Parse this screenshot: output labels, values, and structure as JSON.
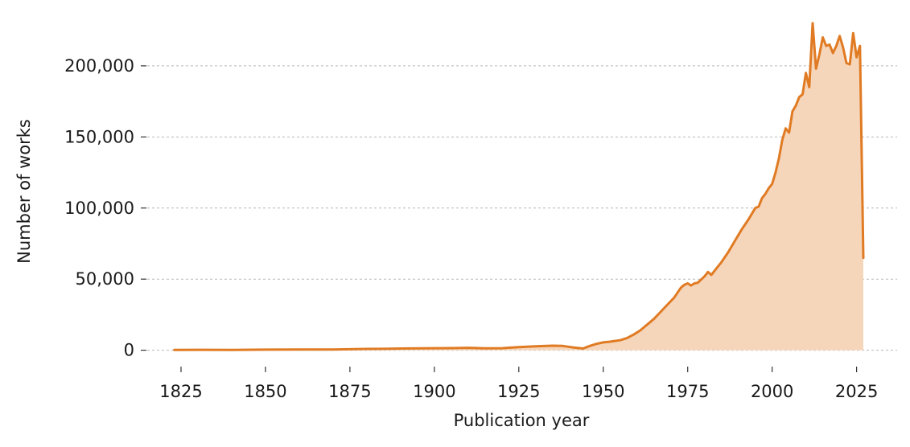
{
  "chart_data": {
    "type": "area",
    "title": "",
    "xlabel": "Publication year",
    "ylabel": "Number of works",
    "xlim": [
      1815,
      2037
    ],
    "ylim": [
      -7000,
      235000
    ],
    "x_ticks": [
      1825,
      1850,
      1875,
      1900,
      1925,
      1950,
      1975,
      2000,
      2025
    ],
    "y_ticks": [
      0,
      50000,
      100000,
      150000,
      200000
    ],
    "y_tick_labels": [
      "0",
      "50,000",
      "100,000",
      "150,000",
      "200,000"
    ],
    "grid": "y-dashed",
    "series": [
      {
        "line_color": "#e07b24",
        "fill_color": "#f6d6bb",
        "points": [
          [
            1823,
            200
          ],
          [
            1830,
            300
          ],
          [
            1840,
            250
          ],
          [
            1850,
            400
          ],
          [
            1860,
            450
          ],
          [
            1870,
            500
          ],
          [
            1875,
            700
          ],
          [
            1880,
            900
          ],
          [
            1885,
            1000
          ],
          [
            1890,
            1200
          ],
          [
            1900,
            1400
          ],
          [
            1905,
            1500
          ],
          [
            1910,
            1700
          ],
          [
            1915,
            1300
          ],
          [
            1920,
            1400
          ],
          [
            1925,
            2200
          ],
          [
            1930,
            2800
          ],
          [
            1935,
            3200
          ],
          [
            1938,
            3000
          ],
          [
            1941,
            2000
          ],
          [
            1944,
            1200
          ],
          [
            1946,
            3000
          ],
          [
            1948,
            4500
          ],
          [
            1950,
            5500
          ],
          [
            1952,
            6000
          ],
          [
            1955,
            7000
          ],
          [
            1957,
            8500
          ],
          [
            1959,
            11000
          ],
          [
            1961,
            14000
          ],
          [
            1963,
            18000
          ],
          [
            1965,
            22000
          ],
          [
            1967,
            27000
          ],
          [
            1969,
            32000
          ],
          [
            1971,
            37000
          ],
          [
            1973,
            44000
          ],
          [
            1974,
            46000
          ],
          [
            1975,
            47000
          ],
          [
            1976,
            45500
          ],
          [
            1977,
            47000
          ],
          [
            1978,
            47500
          ],
          [
            1980,
            52000
          ],
          [
            1981,
            55000
          ],
          [
            1982,
            53000
          ],
          [
            1983,
            56000
          ],
          [
            1985,
            62000
          ],
          [
            1987,
            69000
          ],
          [
            1989,
            77000
          ],
          [
            1991,
            85000
          ],
          [
            1993,
            92000
          ],
          [
            1995,
            100000
          ],
          [
            1996,
            101000
          ],
          [
            1997,
            107000
          ],
          [
            1998,
            110000
          ],
          [
            1999,
            114000
          ],
          [
            2000,
            117000
          ],
          [
            2001,
            125000
          ],
          [
            2002,
            135000
          ],
          [
            2003,
            148000
          ],
          [
            2004,
            156000
          ],
          [
            2005,
            153000
          ],
          [
            2006,
            168000
          ],
          [
            2007,
            172000
          ],
          [
            2008,
            178000
          ],
          [
            2009,
            180000
          ],
          [
            2010,
            195000
          ],
          [
            2011,
            185000
          ],
          [
            2012,
            230000
          ],
          [
            2013,
            198000
          ],
          [
            2014,
            208000
          ],
          [
            2015,
            220000
          ],
          [
            2016,
            214000
          ],
          [
            2017,
            215000
          ],
          [
            2018,
            209000
          ],
          [
            2019,
            214000
          ],
          [
            2020,
            221000
          ],
          [
            2021,
            213000
          ],
          [
            2022,
            202000
          ],
          [
            2023,
            201000
          ],
          [
            2024,
            223000
          ],
          [
            2025,
            206000
          ],
          [
            2026,
            214000
          ],
          [
            2027,
            65000
          ]
        ]
      }
    ]
  }
}
